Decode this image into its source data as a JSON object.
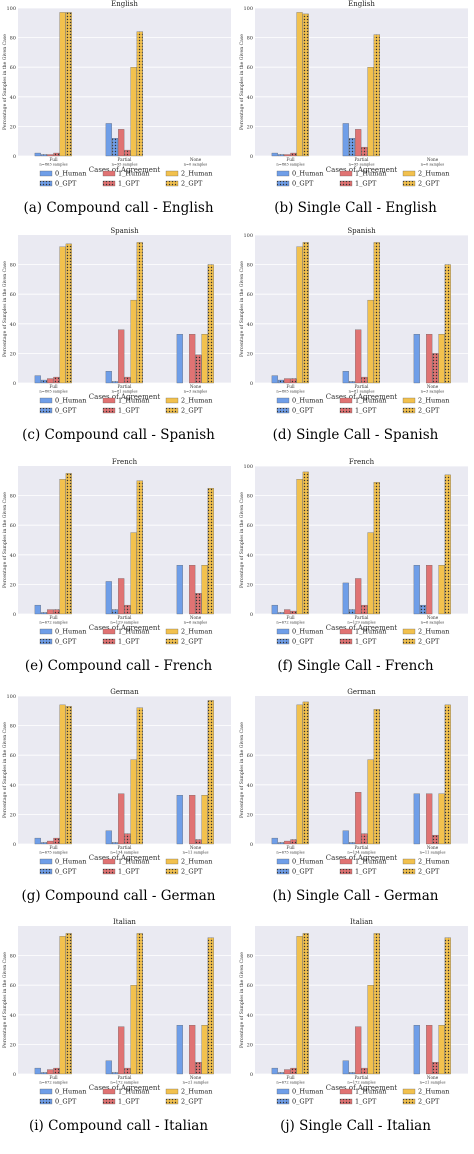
{
  "colors": {
    "Human": [
      "#6f9ee8",
      "#e07373",
      "#f2c14e"
    ],
    "GPT": [
      "#6f9ee8",
      "#e07373",
      "#f2c14e"
    ],
    "background": "#eaeaf2",
    "grid": "#ffffff"
  },
  "legend": [
    "0_Human",
    "1_Human",
    "2_Human",
    "0_GPT",
    "1_GPT",
    "2_GPT"
  ],
  "chart_data": [
    {
      "type": "bar",
      "title": "English",
      "caption": "(a) Compound call - English",
      "xlabel": "Cases of Agreement",
      "ylabel": "Percentage of Samples in the Given Case",
      "categories": [
        "Full",
        "Partial",
        "None"
      ],
      "category_sublabels": [
        "n=863 samples",
        "n=95 samples",
        "n=0 samples"
      ],
      "ylim": [
        0,
        100
      ],
      "yticks": [
        0,
        20,
        40,
        60,
        80,
        100
      ],
      "series": [
        {
          "name": "0_Human",
          "values": [
            2,
            22,
            0
          ]
        },
        {
          "name": "1_Human",
          "values": [
            1,
            18,
            0
          ]
        },
        {
          "name": "2_Human",
          "values": [
            97,
            60,
            0
          ]
        },
        {
          "name": "0_GPT",
          "values": [
            1,
            12,
            0
          ]
        },
        {
          "name": "1_GPT",
          "values": [
            2,
            4,
            0
          ]
        },
        {
          "name": "2_GPT",
          "values": [
            97,
            84,
            0
          ]
        }
      ]
    },
    {
      "type": "bar",
      "title": "English",
      "caption": "(b) Single Call - English",
      "xlabel": "Cases of Agreement",
      "ylabel": "Percentage of Samples in the Given Case",
      "categories": [
        "Full",
        "Partial",
        "None"
      ],
      "category_sublabels": [
        "n=863 samples",
        "n=95 samples",
        "n=0 samples"
      ],
      "ylim": [
        0,
        100
      ],
      "yticks": [
        0,
        20,
        40,
        60,
        80,
        100
      ],
      "series": [
        {
          "name": "0_Human",
          "values": [
            2,
            22,
            0
          ]
        },
        {
          "name": "1_Human",
          "values": [
            1,
            18,
            0
          ]
        },
        {
          "name": "2_Human",
          "values": [
            97,
            60,
            0
          ]
        },
        {
          "name": "0_GPT",
          "values": [
            1,
            12,
            0
          ]
        },
        {
          "name": "1_GPT",
          "values": [
            2,
            6,
            0
          ]
        },
        {
          "name": "2_GPT",
          "values": [
            96,
            82,
            0
          ]
        }
      ]
    },
    {
      "type": "bar",
      "title": "Spanish",
      "caption": "(c) Compound call - Spanish",
      "xlabel": "Cases of Agreement",
      "ylabel": "Percentage of Samples in the Given Case",
      "categories": [
        "Full",
        "Partial",
        "None"
      ],
      "category_sublabels": [
        "n=805 samples",
        "n=81 samples",
        "n=3 samples"
      ],
      "ylim": [
        0,
        100
      ],
      "yticks": [
        0,
        20,
        40,
        60,
        80
      ],
      "series": [
        {
          "name": "0_Human",
          "values": [
            5,
            8,
            33
          ]
        },
        {
          "name": "1_Human",
          "values": [
            3,
            36,
            33
          ]
        },
        {
          "name": "2_Human",
          "values": [
            92,
            56,
            33
          ]
        },
        {
          "name": "0_GPT",
          "values": [
            2,
            1,
            0
          ]
        },
        {
          "name": "1_GPT",
          "values": [
            4,
            4,
            19
          ]
        },
        {
          "name": "2_GPT",
          "values": [
            94,
            95,
            80
          ]
        }
      ]
    },
    {
      "type": "bar",
      "title": "Spanish",
      "caption": "(d) Single Call - Spanish",
      "xlabel": "Cases of Agreement",
      "ylabel": "Percentage of Samples in the Given Case",
      "categories": [
        "Full",
        "Partial",
        "None"
      ],
      "category_sublabels": [
        "n=805 samples",
        "n=81 samples",
        "n=3 samples"
      ],
      "ylim": [
        0,
        100
      ],
      "yticks": [
        0,
        20,
        40,
        60,
        80,
        100
      ],
      "series": [
        {
          "name": "0_Human",
          "values": [
            5,
            8,
            33
          ]
        },
        {
          "name": "1_Human",
          "values": [
            3,
            36,
            33
          ]
        },
        {
          "name": "2_Human",
          "values": [
            92,
            56,
            33
          ]
        },
        {
          "name": "0_GPT",
          "values": [
            2,
            1,
            0
          ]
        },
        {
          "name": "1_GPT",
          "values": [
            3,
            4,
            20
          ]
        },
        {
          "name": "2_GPT",
          "values": [
            95,
            95,
            80
          ]
        }
      ]
    },
    {
      "type": "bar",
      "title": "French",
      "caption": "(e) Compound call - French",
      "xlabel": "Cases of Agreement",
      "ylabel": "Percentage of Samples in the Given Case",
      "categories": [
        "Full",
        "Partial",
        "None"
      ],
      "category_sublabels": [
        "n=672 samples",
        "n=129 samples",
        "n=6 samples"
      ],
      "ylim": [
        0,
        100
      ],
      "yticks": [
        0,
        20,
        40,
        60,
        80
      ],
      "series": [
        {
          "name": "0_Human",
          "values": [
            6,
            22,
            33
          ]
        },
        {
          "name": "1_Human",
          "values": [
            3,
            24,
            33
          ]
        },
        {
          "name": "2_Human",
          "values": [
            91,
            55,
            33
          ]
        },
        {
          "name": "0_GPT",
          "values": [
            1,
            3,
            0
          ]
        },
        {
          "name": "1_GPT",
          "values": [
            3,
            6,
            14
          ]
        },
        {
          "name": "2_GPT",
          "values": [
            95,
            90,
            85
          ]
        }
      ]
    },
    {
      "type": "bar",
      "title": "French",
      "caption": "(f) Single Call - French",
      "xlabel": "Cases of Agreement",
      "ylabel": "Percentage of Samples in the Given Case",
      "categories": [
        "Full",
        "Partial",
        "None"
      ],
      "category_sublabels": [
        "n=672 samples",
        "n=129 samples",
        "n=6 samples"
      ],
      "ylim": [
        0,
        100
      ],
      "yticks": [
        0,
        20,
        40,
        60,
        80,
        100
      ],
      "series": [
        {
          "name": "0_Human",
          "values": [
            6,
            21,
            33
          ]
        },
        {
          "name": "1_Human",
          "values": [
            3,
            24,
            33
          ]
        },
        {
          "name": "2_Human",
          "values": [
            91,
            55,
            33
          ]
        },
        {
          "name": "0_GPT",
          "values": [
            1,
            3,
            6
          ]
        },
        {
          "name": "1_GPT",
          "values": [
            2,
            6,
            0
          ]
        },
        {
          "name": "2_GPT",
          "values": [
            96,
            89,
            94
          ]
        }
      ]
    },
    {
      "type": "bar",
      "title": "German",
      "caption": "(g) Compound call - German",
      "xlabel": "Cases of Agreement",
      "ylabel": "Percentage of Samples in the Given Case",
      "categories": [
        "Full",
        "Partial",
        "None"
      ],
      "category_sublabels": [
        "n=675 samples",
        "n=134 samples",
        "n=11 samples"
      ],
      "ylim": [
        0,
        100
      ],
      "yticks": [
        0,
        20,
        40,
        60,
        80,
        100
      ],
      "series": [
        {
          "name": "0_Human",
          "values": [
            4,
            9,
            33
          ]
        },
        {
          "name": "1_Human",
          "values": [
            2,
            34,
            33
          ]
        },
        {
          "name": "2_Human",
          "values": [
            94,
            57,
            33
          ]
        },
        {
          "name": "0_GPT",
          "values": [
            1,
            1,
            0
          ]
        },
        {
          "name": "1_GPT",
          "values": [
            4,
            7,
            3
          ]
        },
        {
          "name": "2_GPT",
          "values": [
            93,
            92,
            97
          ]
        }
      ]
    },
    {
      "type": "bar",
      "title": "German",
      "caption": "(h) Single Call - German",
      "xlabel": "Cases of Agreement",
      "ylabel": "Percentage of Samples in the Given Case",
      "categories": [
        "Full",
        "Partial",
        "None"
      ],
      "category_sublabels": [
        "n=675 samples",
        "n=134 samples",
        "n=11 samples"
      ],
      "ylim": [
        0,
        100
      ],
      "yticks": [
        0,
        20,
        40,
        60
      ],
      "series": [
        {
          "name": "0_Human",
          "values": [
            4,
            9,
            34
          ]
        },
        {
          "name": "1_Human",
          "values": [
            2,
            35,
            34
          ]
        },
        {
          "name": "2_Human",
          "values": [
            94,
            57,
            34
          ]
        },
        {
          "name": "0_GPT",
          "values": [
            1,
            1,
            0
          ]
        },
        {
          "name": "1_GPT",
          "values": [
            3,
            7,
            6
          ]
        },
        {
          "name": "2_GPT",
          "values": [
            96,
            91,
            94
          ]
        }
      ]
    },
    {
      "type": "bar",
      "title": "Italian",
      "caption": "(i) Compound call - Italian",
      "xlabel": "Cases of Agreement",
      "ylabel": "Percentage of Samples in the Given Case",
      "categories": [
        "Full",
        "Partial",
        "None"
      ],
      "category_sublabels": [
        "n=672 samples",
        "n=172 samples",
        "n=21 samples"
      ],
      "ylim": [
        0,
        100
      ],
      "yticks": [
        0,
        20,
        40,
        60,
        80
      ],
      "series": [
        {
          "name": "0_Human",
          "values": [
            4,
            9,
            33
          ]
        },
        {
          "name": "1_Human",
          "values": [
            3,
            32,
            33
          ]
        },
        {
          "name": "2_Human",
          "values": [
            93,
            60,
            33
          ]
        },
        {
          "name": "0_GPT",
          "values": [
            1,
            1,
            0
          ]
        },
        {
          "name": "1_GPT",
          "values": [
            4,
            4,
            8
          ]
        },
        {
          "name": "2_GPT",
          "values": [
            95,
            95,
            92
          ]
        }
      ]
    },
    {
      "type": "bar",
      "title": "Italian",
      "caption": "(j) Single Call - Italian",
      "xlabel": "Cases of Agreement",
      "ylabel": "Percentage of Samples in the Given Case",
      "categories": [
        "Full",
        "Partial",
        "None"
      ],
      "category_sublabels": [
        "n=672 samples",
        "n=172 samples",
        "n=21 samples"
      ],
      "ylim": [
        0,
        100
      ],
      "yticks": [
        0,
        20,
        40,
        60,
        80
      ],
      "series": [
        {
          "name": "0_Human",
          "values": [
            4,
            9,
            33
          ]
        },
        {
          "name": "1_Human",
          "values": [
            3,
            32,
            33
          ]
        },
        {
          "name": "2_Human",
          "values": [
            93,
            60,
            33
          ]
        },
        {
          "name": "0_GPT",
          "values": [
            1,
            1,
            0
          ]
        },
        {
          "name": "1_GPT",
          "values": [
            4,
            4,
            8
          ]
        },
        {
          "name": "2_GPT",
          "values": [
            95,
            95,
            92
          ]
        }
      ]
    }
  ]
}
